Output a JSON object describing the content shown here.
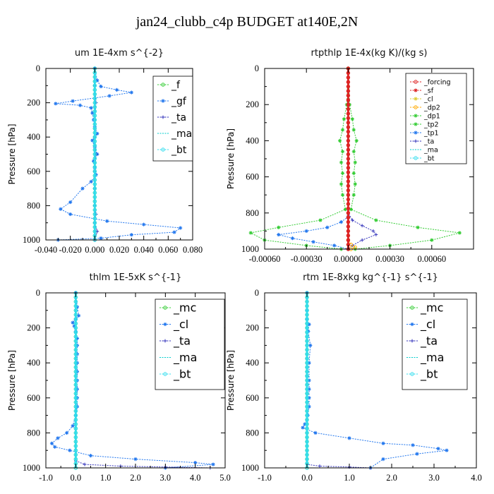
{
  "figure": {
    "title": "jan24_clubb_c4p  BUDGET at140E,2N"
  },
  "colors": {
    "green": "#33cc33",
    "blue": "#2277ee",
    "navy": "#3333bb",
    "cyan": "#00cccc",
    "cyan2": "#33ddee",
    "red": "#dd2222",
    "orange": "#ffaa00",
    "yellow": "#ddcc33",
    "frame": "#000000"
  },
  "chart_data": [
    {
      "id": "um",
      "type": "line",
      "title": "um   1E-4xm s^{-2}",
      "ylabel": "Pressure [hPa]",
      "xlim": [
        -0.04,
        0.08
      ],
      "ylim": [
        1000,
        0
      ],
      "xticks": [
        "-0.040",
        "-0.020",
        "0.000",
        "0.020",
        "0.040",
        "0.060",
        "0.080"
      ],
      "yticks": [
        "0",
        "200",
        "400",
        "600",
        "800",
        "1000"
      ],
      "legend": {
        "position": "top-right",
        "entries": [
          "_f",
          "_gf",
          "_ta",
          "_ma",
          "_bt"
        ]
      },
      "series": [
        {
          "name": "_f",
          "color": "green",
          "marker": "circle",
          "x": [
            0,
            0
          ],
          "y": [
            0,
            1000
          ]
        },
        {
          "name": "_gf",
          "color": "blue",
          "marker": "star",
          "x": [
            0,
            0.002,
            0.005,
            0.018,
            0.03,
            0.012,
            -0.018,
            -0.032,
            -0.012,
            -0.003,
            -0.002,
            -0.001,
            0,
            0.002,
            -0.002,
            0,
            0.002,
            -0.001,
            0,
            0.001,
            -0.003,
            -0.01,
            -0.02,
            -0.028,
            -0.02,
            0.01,
            0.04,
            0.07,
            0.065,
            0.03,
            0.005,
            -0.03
          ],
          "y": [
            0,
            70,
            105,
            125,
            140,
            160,
            190,
            205,
            215,
            230,
            260,
            300,
            340,
            380,
            420,
            460,
            500,
            540,
            580,
            620,
            660,
            700,
            780,
            820,
            850,
            890,
            910,
            930,
            955,
            970,
            990,
            1000
          ]
        },
        {
          "name": "_ta",
          "color": "navy",
          "marker": "plus",
          "x": [
            0,
            0,
            0.001,
            0,
            0,
            0.001,
            0,
            0,
            0,
            0.001,
            0,
            0.002,
            0
          ],
          "y": [
            0,
            100,
            200,
            300,
            400,
            500,
            600,
            700,
            800,
            850,
            900,
            950,
            1000
          ]
        },
        {
          "name": "_ma",
          "color": "cyan",
          "marker": "none",
          "x": [
            0,
            0
          ],
          "y": [
            0,
            1000
          ]
        },
        {
          "name": "_bt",
          "color": "cyan2",
          "marker": "circle",
          "x": [
            0,
            0
          ],
          "y": [
            0,
            1000
          ]
        }
      ]
    },
    {
      "id": "rtpthlp",
      "type": "line",
      "title": "rtpthlp   1E-4x(kg K)/(kg s)",
      "ylabel": "Pressure [hPa]",
      "xlim": [
        -0.0006,
        0.0009
      ],
      "ylim": [
        1000,
        0
      ],
      "xticks": [
        "-0.00060",
        "-0.00030",
        "0.00000",
        "0.00030",
        "0.00060"
      ],
      "yticks": [
        "0",
        "200",
        "400",
        "600",
        "800",
        "1000"
      ],
      "legend": {
        "position": "top-right",
        "entries": [
          "_forcing",
          "_sf",
          "_cl",
          "_dp2",
          "_dp1",
          "_tp2",
          "_tp1",
          "_ta",
          "_ma",
          "_bt"
        ]
      },
      "series": [
        {
          "name": "_tp2",
          "color": "green",
          "marker": "star",
          "x": [
            0,
            1e-05,
            3e-05,
            4e-05,
            6e-05,
            4e-05,
            5e-05,
            4e-05,
            5e-05,
            4e-05,
            2e-05,
            0.0002,
            0.0005,
            0.0008,
            0.0006,
            0.0003,
            5e-05
          ],
          "y": [
            0,
            200,
            280,
            340,
            400,
            460,
            520,
            580,
            640,
            700,
            780,
            840,
            880,
            910,
            950,
            980,
            1000
          ]
        },
        {
          "name": "_dp1",
          "color": "green",
          "marker": "star",
          "x": [
            0,
            -1e-05,
            -3e-05,
            -4e-05,
            -6e-05,
            -4e-05,
            -5e-05,
            -4e-05,
            -5e-05,
            -4e-05,
            -2e-05,
            -0.0002,
            -0.0005,
            -0.0007,
            -0.0006,
            -0.0003,
            -5e-05
          ],
          "y": [
            0,
            200,
            280,
            340,
            400,
            460,
            520,
            580,
            640,
            700,
            780,
            840,
            880,
            910,
            950,
            980,
            1000
          ]
        },
        {
          "name": "_tp1",
          "color": "blue",
          "marker": "star",
          "x": [
            0,
            0,
            0,
            -5e-05,
            -0.00015,
            -0.0003,
            -0.0005,
            -0.0004,
            -0.00025,
            -0.0001,
            0
          ],
          "y": [
            0,
            700,
            820,
            850,
            880,
            900,
            920,
            940,
            960,
            980,
            1000
          ]
        },
        {
          "name": "_ta",
          "color": "navy",
          "marker": "plus",
          "x": [
            0,
            0,
            3e-05,
            0.0001,
            0.00018,
            0.0002,
            0.0001,
            3e-05,
            0
          ],
          "y": [
            0,
            800,
            840,
            870,
            900,
            920,
            950,
            980,
            1000
          ]
        },
        {
          "name": "_dp2",
          "color": "orange",
          "marker": "circle",
          "x": [
            0,
            0,
            2e-05,
            5e-05,
            2e-05
          ],
          "y": [
            0,
            950,
            975,
            990,
            1000
          ]
        },
        {
          "name": "_sf",
          "color": "red",
          "marker": "star",
          "x": [
            0,
            0
          ],
          "y": [
            0,
            1000
          ]
        },
        {
          "name": "_forcing",
          "color": "red",
          "marker": "circle",
          "x": [
            0,
            0
          ],
          "y": [
            0,
            1000
          ]
        }
      ]
    },
    {
      "id": "thlm",
      "type": "line",
      "title": "thlm   1E-5xK s^{-1}",
      "ylabel": "Pressure [hPa]",
      "xlim": [
        -1.0,
        5.0
      ],
      "ylim": [
        1000,
        0
      ],
      "xticks": [
        "-1.0",
        "0.0",
        "1.0",
        "2.0",
        "3.0",
        "4.0",
        "5.0"
      ],
      "yticks": [
        "0",
        "200",
        "400",
        "600",
        "800",
        "1000"
      ],
      "legend": {
        "position": "top-right",
        "entries": [
          "_mc",
          "_cl",
          "_ta",
          "_ma",
          "_bt"
        ]
      },
      "series": [
        {
          "name": "_mc",
          "color": "green",
          "marker": "circle",
          "x": [
            0,
            0
          ],
          "y": [
            0,
            1000
          ]
        },
        {
          "name": "_cl",
          "color": "blue",
          "marker": "star",
          "x": [
            0,
            0.05,
            0.1,
            0,
            -0.1,
            -0.05,
            0,
            0.05,
            0.05,
            0.05,
            0.05,
            0.05,
            0.05,
            0.05,
            0.05,
            0.05,
            0,
            -0.1,
            -0.3,
            -0.6,
            -0.8,
            -0.7,
            -0.2,
            0.5,
            2.0,
            4.0,
            4.6,
            3.0
          ],
          "y": [
            0,
            80,
            130,
            150,
            170,
            190,
            220,
            260,
            300,
            350,
            400,
            450,
            500,
            550,
            600,
            650,
            700,
            760,
            800,
            830,
            860,
            880,
            900,
            930,
            950,
            970,
            980,
            1000
          ]
        },
        {
          "name": "_ta",
          "color": "navy",
          "marker": "plus",
          "x": [
            0,
            0,
            0.3,
            1.5,
            3.0,
            4.5
          ],
          "y": [
            0,
            960,
            980,
            990,
            995,
            1000
          ]
        },
        {
          "name": "_ma",
          "color": "cyan",
          "marker": "none",
          "x": [
            0,
            0
          ],
          "y": [
            0,
            1000
          ]
        },
        {
          "name": "_bt",
          "color": "cyan2",
          "marker": "circle",
          "x": [
            0,
            0
          ],
          "y": [
            0,
            1000
          ]
        }
      ]
    },
    {
      "id": "rtm",
      "type": "line",
      "title": "rtm   1E-8xkg kg^{-1} s^{-1}",
      "ylabel": "Pressure [hPa]",
      "xlim": [
        -1.0,
        4.0
      ],
      "ylim": [
        1000,
        0
      ],
      "xticks": [
        "-1.0",
        "0.0",
        "1.0",
        "2.0",
        "3.0",
        "4.0"
      ],
      "yticks": [
        "0",
        "200",
        "400",
        "600",
        "800",
        "1000"
      ],
      "legend": {
        "position": "top-right",
        "entries": [
          "_mc",
          "_cl",
          "_ta",
          "_ma",
          "_bt"
        ]
      },
      "series": [
        {
          "name": "_mc",
          "color": "green",
          "marker": "circle",
          "x": [
            0,
            0
          ],
          "y": [
            0,
            1000
          ]
        },
        {
          "name": "_cl",
          "color": "blue",
          "marker": "star",
          "x": [
            0,
            0,
            0,
            0.05,
            0.03,
            0.08,
            0.05,
            0.05,
            0.05,
            0.05,
            0.05,
            0.02,
            -0.05,
            -0.1,
            0.2,
            1.0,
            1.8,
            2.5,
            3.1,
            3.3,
            2.6,
            1.8,
            1.5
          ],
          "y": [
            0,
            100,
            150,
            180,
            220,
            300,
            400,
            500,
            550,
            600,
            650,
            700,
            750,
            770,
            800,
            830,
            860,
            870,
            890,
            900,
            920,
            950,
            1000
          ]
        },
        {
          "name": "_ta",
          "color": "navy",
          "marker": "plus",
          "x": [
            0,
            0,
            0.3,
            1.0,
            1.5
          ],
          "y": [
            0,
            980,
            990,
            995,
            1000
          ]
        },
        {
          "name": "_ma",
          "color": "cyan",
          "marker": "none",
          "x": [
            0,
            0
          ],
          "y": [
            0,
            1000
          ]
        },
        {
          "name": "_bt",
          "color": "cyan2",
          "marker": "circle",
          "x": [
            0,
            0
          ],
          "y": [
            0,
            1000
          ]
        }
      ]
    }
  ]
}
